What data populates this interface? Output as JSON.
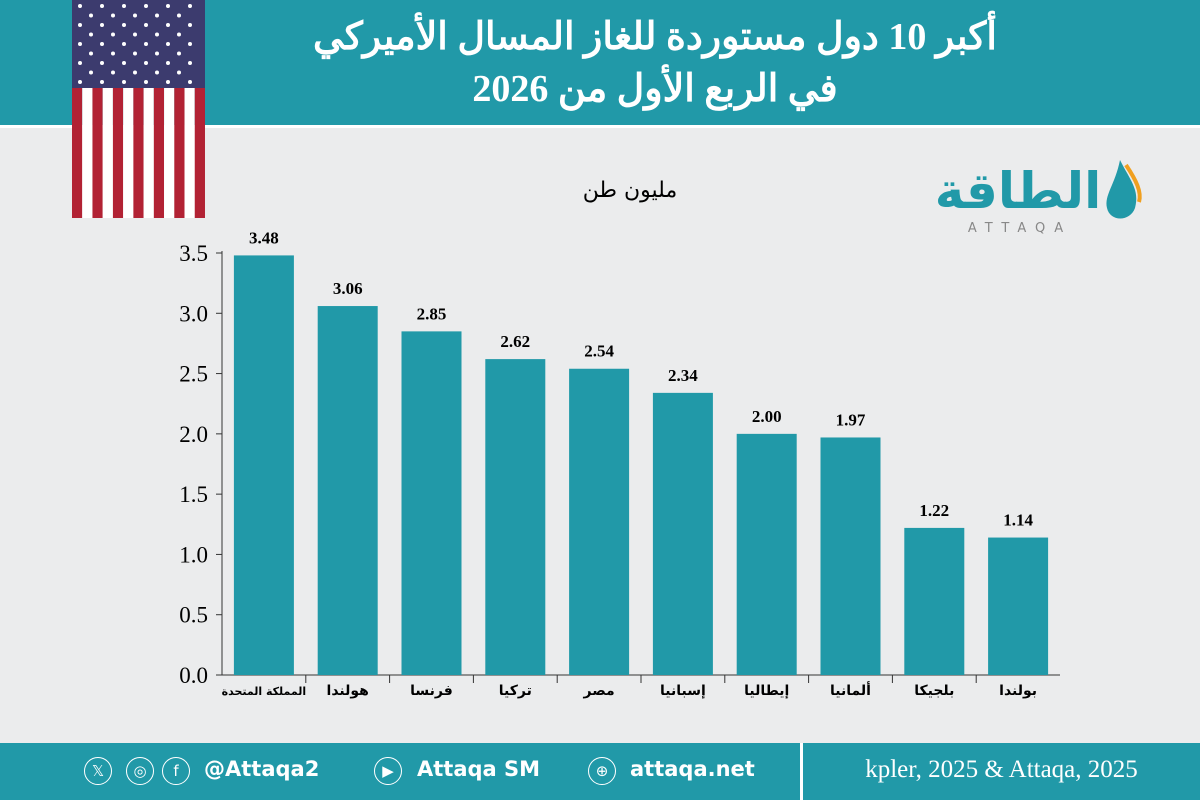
{
  "header": {
    "title_line1": "أكبر 10 دول مستوردة للغاز المسال الأميركي",
    "title_line2": "في الربع الأول من 2026"
  },
  "logo": {
    "text": "الطاقة",
    "latin": "ATTAQA"
  },
  "footer": {
    "handle": "@Attaqa2",
    "youtube": "Attaqa SM",
    "website": "attaqa.net",
    "source": "kpler, 2025 & Attaqa, 2025",
    "icons": [
      "x-icon",
      "instagram-icon",
      "facebook-icon",
      "youtube-icon",
      "globe-icon"
    ]
  },
  "colors": {
    "bar": "#2199a8",
    "header": "#2199a8"
  },
  "chart_data": {
    "type": "bar",
    "unit_label": "مليون طن",
    "categories": [
      "المملكة المتحدة",
      "هولندا",
      "فرنسا",
      "تركيا",
      "مصر",
      "إسبانيا",
      "إيطاليا",
      "ألمانيا",
      "بلجيكا",
      "بولندا"
    ],
    "values": [
      3.48,
      3.06,
      2.85,
      2.62,
      2.54,
      2.34,
      2.0,
      1.97,
      1.22,
      1.14
    ],
    "value_labels": [
      "3.48",
      "3.06",
      "2.85",
      "2.62",
      "2.54",
      "2.34",
      "2.00",
      "1.97",
      "1.22",
      "1.14"
    ],
    "yticks": [
      "0.0",
      "0.5",
      "1.0",
      "1.5",
      "2.0",
      "2.5",
      "3.0",
      "3.5"
    ],
    "ylim": [
      0,
      3.5
    ],
    "grid": false
  }
}
